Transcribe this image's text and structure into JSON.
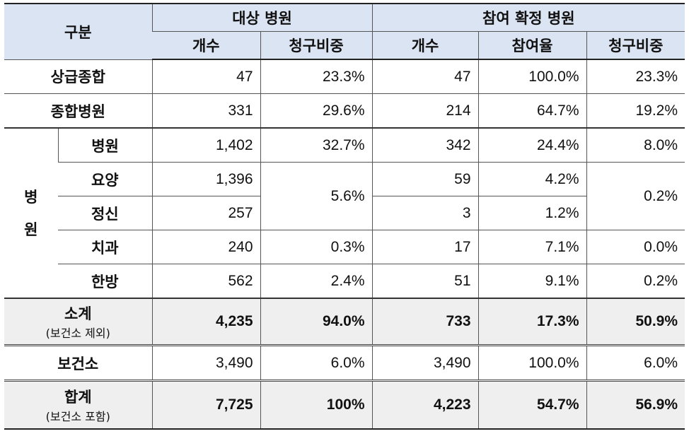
{
  "header": {
    "category": "구분",
    "group_target": "대상 병원",
    "group_confirmed": "참여 확정 병원",
    "col_count": "개수",
    "col_share": "청구비중",
    "col_count2": "개수",
    "col_rate": "참여율",
    "col_share2": "청구비중"
  },
  "rows": {
    "tertiary": {
      "label": "상급종합",
      "count": "47",
      "share": "23.3%",
      "count2": "47",
      "rate": "100.0%",
      "share2": "23.3%"
    },
    "general": {
      "label": "종합병원",
      "count": "331",
      "share": "29.6%",
      "count2": "214",
      "rate": "64.7%",
      "share2": "19.2%"
    },
    "hospital_group_char1": "병",
    "hospital_group_char2": "원",
    "hospital": {
      "label": "병원",
      "count": "1,402",
      "share": "32.7%",
      "count2": "342",
      "rate": "24.4%",
      "share2": "8.0%"
    },
    "nursing": {
      "label": "요양",
      "count": "1,396",
      "count2": "59",
      "rate": "4.2%"
    },
    "merged_share": "5.6%",
    "merged_share2": "0.2%",
    "mental": {
      "label": "정신",
      "count": "257",
      "count2": "3",
      "rate": "1.2%"
    },
    "dental": {
      "label": "치과",
      "count": "240",
      "share": "0.3%",
      "count2": "17",
      "rate": "7.1%",
      "share2": "0.0%"
    },
    "oriental": {
      "label": "한방",
      "count": "562",
      "share": "2.4%",
      "count2": "51",
      "rate": "9.1%",
      "share2": "0.2%"
    },
    "subtotal": {
      "label": "소계",
      "note": "(보건소 제외)",
      "count": "4,235",
      "share": "94.0%",
      "count2": "733",
      "rate": "17.3%",
      "share2": "50.9%"
    },
    "health_center": {
      "label": "보건소",
      "count": "3,490",
      "share": "6.0%",
      "count2": "3,490",
      "rate": "100.0%",
      "share2": "6.0%"
    },
    "total": {
      "label": "합계",
      "note": "(보건소 포함)",
      "count": "7,725",
      "share": "100%",
      "count2": "4,223",
      "rate": "54.7%",
      "share2": "56.9%"
    }
  }
}
